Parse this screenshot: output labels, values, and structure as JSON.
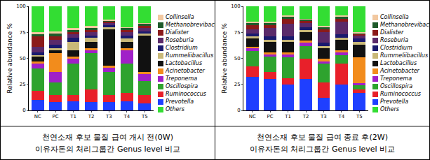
{
  "chart_data": [
    {
      "type": "bar",
      "title": "천연소재 후보 물질 급여 개시 전(0W)\n이유자돈의 처리그룹간 Genus level 비교",
      "y_label": "Relative abundance %",
      "stacked": true,
      "grid": false,
      "legend": "right",
      "ylim": [
        0,
        100
      ],
      "yticks": [
        0,
        25,
        50,
        75,
        100
      ],
      "categories": [
        "NC",
        "PC",
        "T1",
        "T2",
        "T3",
        "T4",
        "T5"
      ],
      "series": [
        {
          "name": "Prevotella",
          "color": "#1f3fff",
          "values": [
            10,
            8,
            9,
            8,
            8,
            9,
            7
          ]
        },
        {
          "name": "Ruminococcus",
          "color": "#e8202a",
          "values": [
            9,
            7,
            6,
            12,
            7,
            8,
            8
          ]
        },
        {
          "name": "Oscillospira",
          "color": "#2ea32e",
          "values": [
            21,
            12,
            30,
            35,
            22,
            28,
            13
          ]
        },
        {
          "name": "Treponema",
          "color": "#a020c8",
          "values": [
            5,
            10,
            5,
            3,
            4,
            13,
            7
          ]
        },
        {
          "name": "Acinetobacter",
          "color": "#f28c1c",
          "values": [
            2,
            18,
            2,
            2,
            2,
            2,
            2
          ]
        },
        {
          "name": "Lactobacillus",
          "color": "#111111",
          "values": [
            5,
            3,
            6,
            6,
            35,
            6,
            35
          ]
        },
        {
          "name": "Rummeliibacillus",
          "color": "#c8b878",
          "values": [
            1,
            2,
            8,
            4,
            2,
            3,
            2
          ]
        },
        {
          "name": "Clostridium",
          "color": "#1a1a6e",
          "values": [
            3,
            3,
            4,
            2,
            2,
            3,
            2
          ]
        },
        {
          "name": "Roseburia",
          "color": "#5a2a6a",
          "values": [
            5,
            5,
            3,
            3,
            2,
            3,
            3
          ]
        },
        {
          "name": "Dialister",
          "color": "#8b1a1a",
          "values": [
            10,
            3,
            2,
            2,
            1,
            2,
            2
          ]
        },
        {
          "name": "Methanobrevibacter",
          "color": "#1e5a2a",
          "values": [
            2,
            3,
            2,
            2,
            1,
            2,
            2
          ]
        },
        {
          "name": "Collinsella",
          "color": "#f2c8a0",
          "values": [
            2,
            2,
            2,
            2,
            1,
            1,
            1
          ]
        },
        {
          "name": "Others",
          "color": "#33dd33",
          "values": [
            25,
            24,
            21,
            19,
            13,
            20,
            16
          ]
        }
      ]
    },
    {
      "type": "bar",
      "title": "천연소재 후보 물질 급여 종료 후(2W)\n이유자돈의 처리그룹간 Genus level 비교",
      "y_label": "Relative abundance %",
      "stacked": true,
      "grid": false,
      "legend": "right",
      "ylim": [
        0,
        100
      ],
      "yticks": [
        0,
        25,
        50,
        75,
        100
      ],
      "categories": [
        "NC",
        "PC",
        "T1",
        "T2",
        "T3",
        "T4",
        "T5"
      ],
      "series": [
        {
          "name": "Prevotella",
          "color": "#1f3fff",
          "values": [
            32,
            30,
            25,
            30,
            12,
            25,
            17
          ]
        },
        {
          "name": "Ruminococcus",
          "color": "#e8202a",
          "values": [
            10,
            7,
            6,
            20,
            15,
            20,
            3
          ]
        },
        {
          "name": "Oscillospira",
          "color": "#2ea32e",
          "values": [
            15,
            15,
            20,
            12,
            18,
            8,
            4
          ]
        },
        {
          "name": "Treponema",
          "color": "#a020c8",
          "values": [
            3,
            2,
            3,
            3,
            2,
            3,
            2
          ]
        },
        {
          "name": "Acinetobacter",
          "color": "#f28c1c",
          "values": [
            1,
            2,
            2,
            2,
            3,
            2,
            25
          ]
        },
        {
          "name": "Lactobacillus",
          "color": "#111111",
          "values": [
            8,
            10,
            10,
            8,
            10,
            10,
            12
          ]
        },
        {
          "name": "Rummeliibacillus",
          "color": "#c8b878",
          "values": [
            2,
            2,
            2,
            2,
            2,
            2,
            3
          ]
        },
        {
          "name": "Clostridium",
          "color": "#1a1a6e",
          "values": [
            3,
            3,
            3,
            3,
            3,
            3,
            3
          ]
        },
        {
          "name": "Roseburia",
          "color": "#5a2a6a",
          "values": [
            4,
            8,
            12,
            4,
            10,
            12,
            3
          ]
        },
        {
          "name": "Dialister",
          "color": "#8b1a1a",
          "values": [
            4,
            3,
            5,
            2,
            3,
            3,
            1
          ]
        },
        {
          "name": "Methanobrevibacter",
          "color": "#1e5a2a",
          "values": [
            2,
            2,
            2,
            1,
            2,
            2,
            1
          ]
        },
        {
          "name": "Collinsella",
          "color": "#f2c8a0",
          "values": [
            1,
            1,
            1,
            1,
            1,
            1,
            1
          ]
        },
        {
          "name": "Others",
          "color": "#33dd33",
          "values": [
            15,
            15,
            9,
            12,
            19,
            9,
            25
          ]
        }
      ]
    }
  ]
}
